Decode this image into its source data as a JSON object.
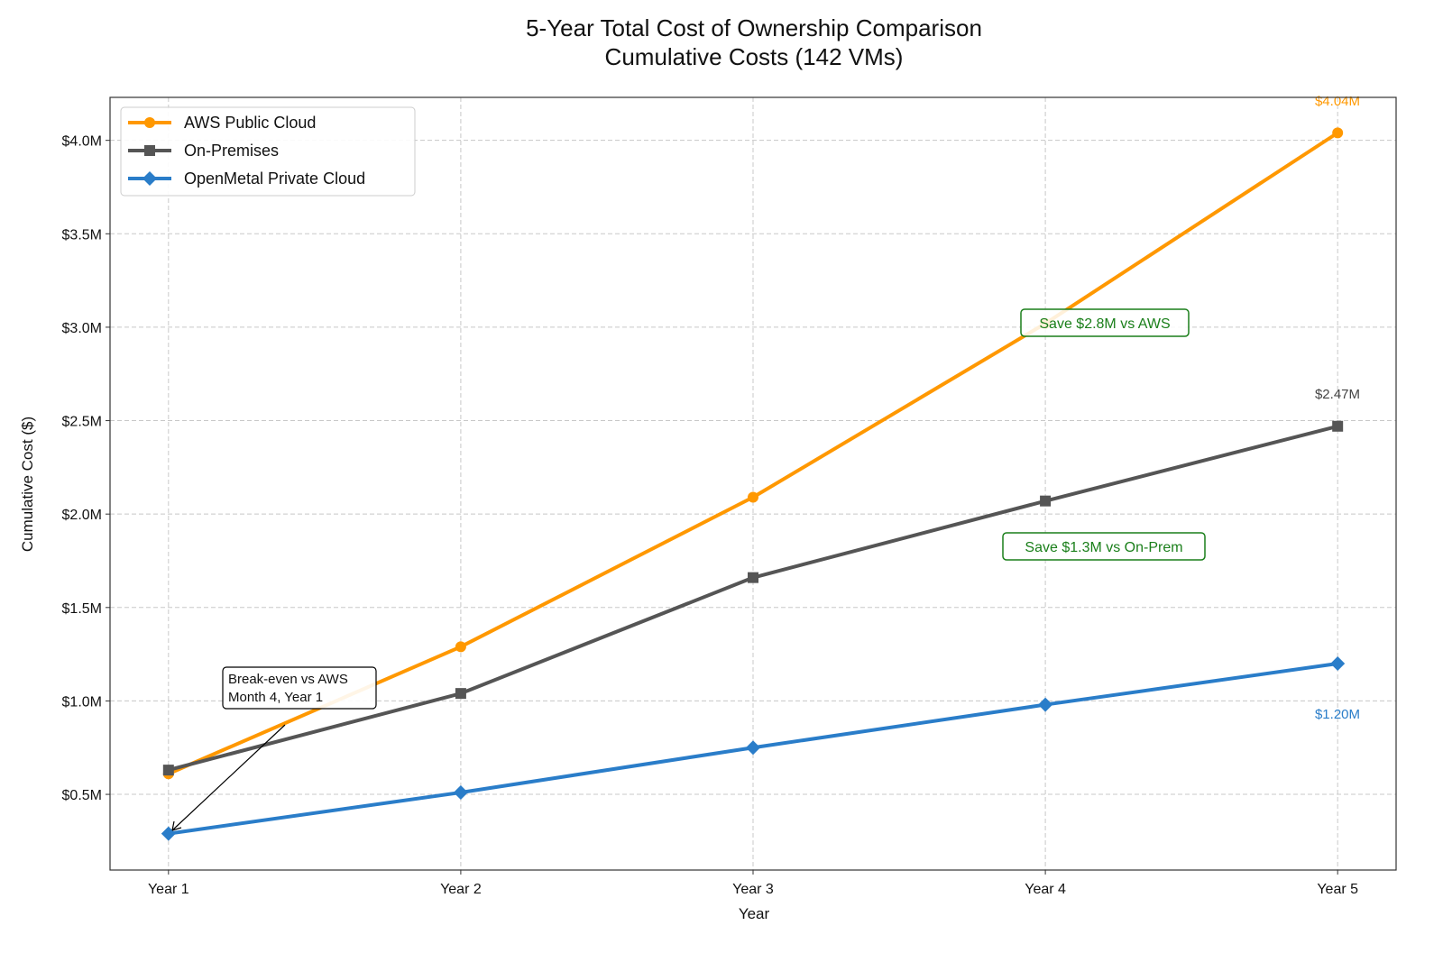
{
  "chart_data": {
    "type": "line",
    "title": "5-Year Total Cost of Ownership Comparison",
    "subtitle": "Cumulative Costs (142 VMs)",
    "xlabel": "Year",
    "ylabel": "Cumulative Cost ($)",
    "categories": [
      "Year 1",
      "Year 2",
      "Year 3",
      "Year 4",
      "Year 5"
    ],
    "x": [
      1,
      2,
      3,
      4,
      5
    ],
    "xlim": [
      0.8,
      5.2
    ],
    "ylim": [
      0.095,
      4.23
    ],
    "y_unit": "$M",
    "yticks": [
      0.5,
      1.0,
      1.5,
      2.0,
      2.5,
      3.0,
      3.5,
      4.0
    ],
    "ytick_labels": [
      "$0.5M",
      "$1.0M",
      "$1.5M",
      "$2.0M",
      "$2.5M",
      "$3.0M",
      "$3.5M",
      "$4.0M"
    ],
    "grid": true,
    "legend_position": "top-left",
    "series": [
      {
        "name": "AWS Public Cloud",
        "color": "#ff9800",
        "marker": "circle",
        "values": [
          0.61,
          1.29,
          2.09,
          3.02,
          4.04
        ],
        "end_label": "$4.04M"
      },
      {
        "name": "On-Premises",
        "color": "#555555",
        "marker": "square",
        "values": [
          0.63,
          1.04,
          1.66,
          2.07,
          2.47
        ],
        "end_label": "$2.47M"
      },
      {
        "name": "OpenMetal Private Cloud",
        "color": "#2a7dc9",
        "marker": "diamond",
        "values": [
          0.29,
          0.51,
          0.75,
          0.98,
          1.2
        ],
        "end_label": "$1.20M"
      }
    ],
    "annotations": [
      {
        "text": "Save $2.8M vs AWS",
        "color": "#1a7f1a"
      },
      {
        "text": "Save $1.3M vs On-Prem",
        "color": "#1a7f1a"
      },
      {
        "text_lines": [
          "Break-even vs AWS",
          "Month 4, Year 1"
        ],
        "color": "#000000"
      }
    ]
  }
}
